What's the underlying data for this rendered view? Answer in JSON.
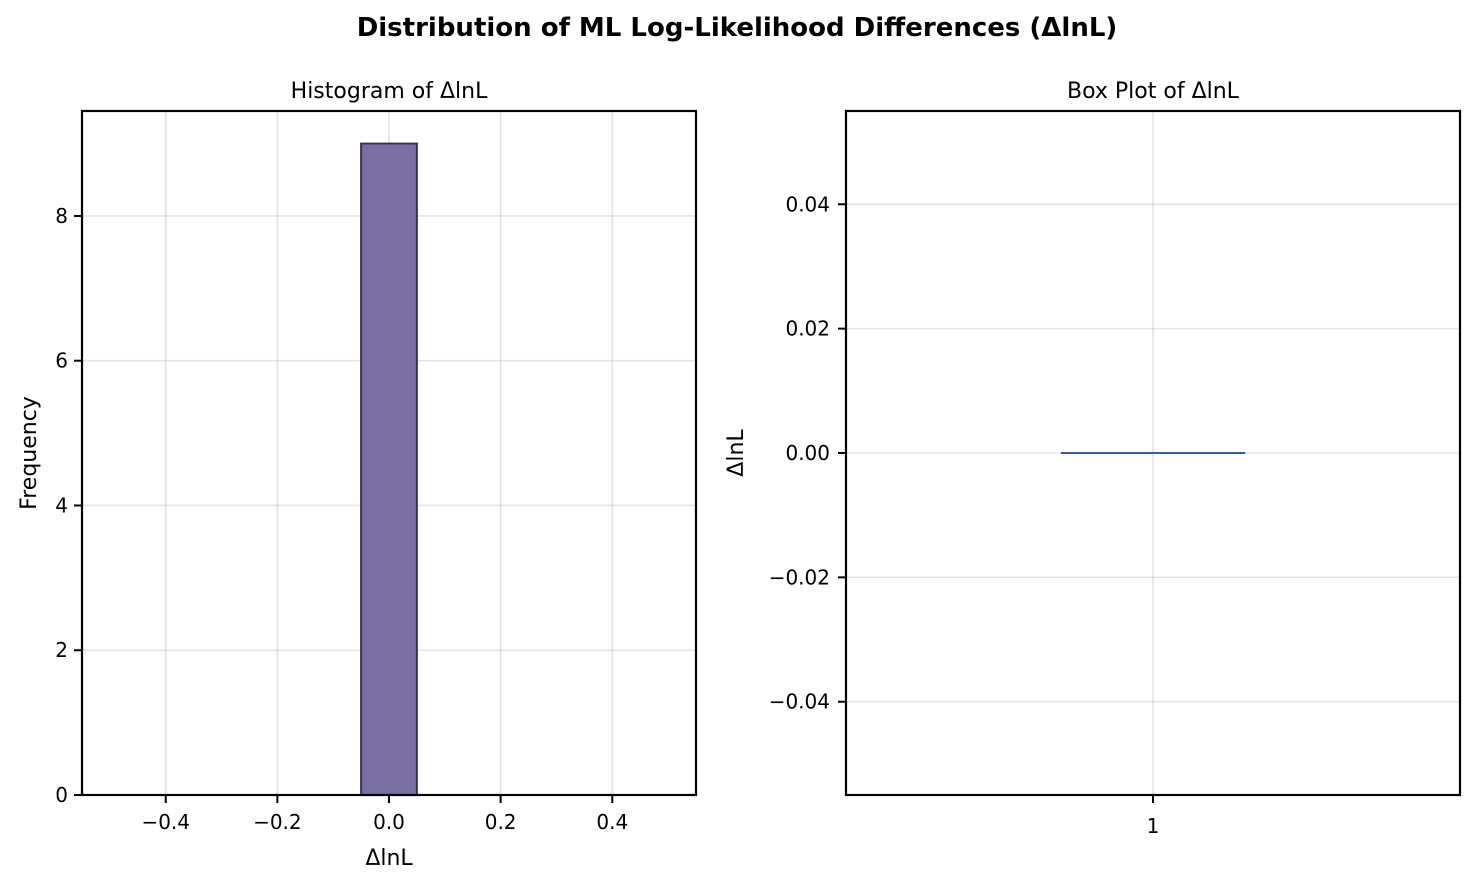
{
  "figure": {
    "title": "Distribution of ML Log-Likelihood Differences (ΔlnL)"
  },
  "colors": {
    "bar_fill": "#7b6ea3",
    "bar_edge": "#3a3350",
    "median_line": "#3b5998"
  },
  "chart_data": [
    {
      "type": "bar",
      "title": "Histogram of ΔlnL",
      "xlabel": "ΔlnL",
      "ylabel": "Frequency",
      "xlim": [
        -0.55,
        0.55
      ],
      "ylim": [
        0,
        9.45
      ],
      "xticks": [
        -0.4,
        -0.2,
        0.0,
        0.2,
        0.4
      ],
      "xtick_labels": [
        "−0.4",
        "−0.2",
        "0.0",
        "0.2",
        "0.4"
      ],
      "yticks": [
        0,
        2,
        4,
        6,
        8
      ],
      "ytick_labels": [
        "0",
        "2",
        "4",
        "6",
        "8"
      ],
      "bins": [
        {
          "x0": -0.5,
          "x1": -0.4,
          "count": 0
        },
        {
          "x0": -0.4,
          "x1": -0.3,
          "count": 0
        },
        {
          "x0": -0.3,
          "x1": -0.2,
          "count": 0
        },
        {
          "x0": -0.2,
          "x1": -0.1,
          "count": 0
        },
        {
          "x0": -0.05,
          "x1": 0.05,
          "count": 9
        },
        {
          "x0": 0.1,
          "x1": 0.2,
          "count": 0
        },
        {
          "x0": 0.2,
          "x1": 0.3,
          "count": 0
        },
        {
          "x0": 0.3,
          "x1": 0.4,
          "count": 0
        },
        {
          "x0": 0.4,
          "x1": 0.5,
          "count": 0
        }
      ],
      "grid": true
    },
    {
      "type": "box",
      "title": "Box Plot of ΔlnL",
      "xlabel": "",
      "ylabel": "ΔlnL",
      "ylim": [
        -0.055,
        0.055
      ],
      "xticks": [
        1
      ],
      "xtick_labels": [
        "1"
      ],
      "yticks": [
        -0.04,
        -0.02,
        0.0,
        0.02,
        0.04
      ],
      "ytick_labels": [
        "−0.04",
        "−0.02",
        "0.00",
        "0.02",
        "0.04"
      ],
      "boxes": [
        {
          "position": 1,
          "min": 0.0,
          "q1": 0.0,
          "median": 0.0,
          "q3": 0.0,
          "max": 0.0,
          "width": 0.3
        }
      ],
      "grid": true
    }
  ]
}
